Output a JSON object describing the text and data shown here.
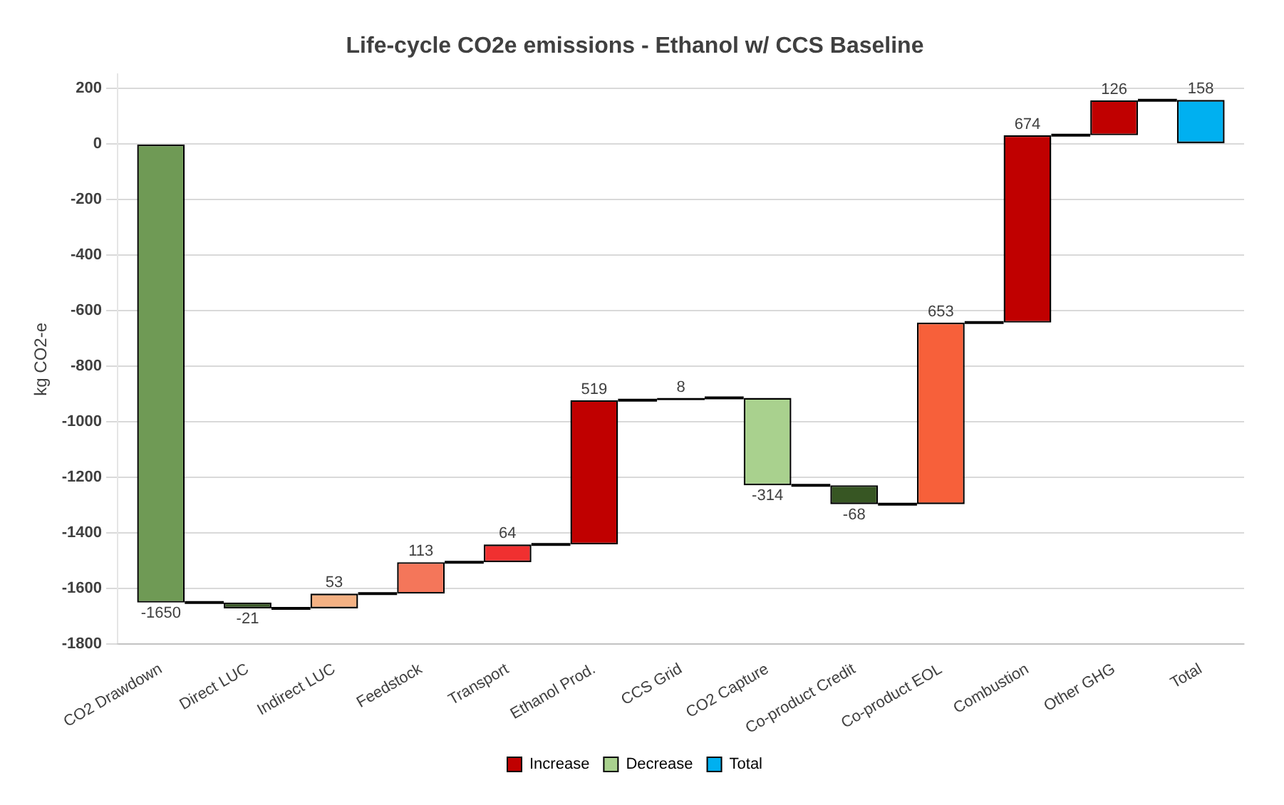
{
  "chart_data": {
    "type": "bar",
    "title": "Life-cycle CO2e emissions - Ethanol w/ CCS Baseline",
    "ylabel": "kg CO2-e",
    "categories": [
      "CO2 Drawdown",
      "Direct LUC",
      "Indirect LUC",
      "Feedstock",
      "Transport",
      "Ethanol Prod.",
      "CCS Grid",
      "CO2 Capture",
      "Co-product Credit",
      "Co-product EOL",
      "Combustion",
      "Other GHG",
      "Total"
    ],
    "series": [
      {
        "name": "Increase",
        "color": "#c00000",
        "values": [
          null,
          null,
          53,
          113,
          64,
          519,
          8,
          null,
          null,
          653,
          674,
          126,
          null
        ],
        "base": [
          null,
          null,
          -1671,
          -1618,
          -1505,
          -1441,
          -922,
          null,
          null,
          -1296,
          -643,
          31,
          null
        ],
        "colors": [
          null,
          null,
          "#f4b183",
          "#f4765a",
          "#f03030",
          "#c00000",
          "#000000",
          null,
          null,
          "#f7603a",
          "#c00000",
          "#c00000",
          null
        ]
      },
      {
        "name": "Decrease",
        "color": "#a9d18e",
        "values": [
          -1650,
          -21,
          null,
          null,
          null,
          null,
          null,
          -314,
          -68,
          null,
          null,
          null,
          null
        ],
        "base": [
          0,
          -1650,
          null,
          null,
          null,
          null,
          null,
          -914,
          -1228,
          null,
          null,
          null,
          null
        ],
        "colors": [
          "#6f9a55",
          "#375623",
          null,
          null,
          null,
          null,
          null,
          "#a9d18e",
          "#375623",
          null,
          null,
          null,
          null
        ]
      },
      {
        "name": "Total",
        "color": "#00b0f0",
        "values": [
          null,
          null,
          null,
          null,
          null,
          null,
          null,
          null,
          null,
          null,
          null,
          null,
          158
        ],
        "base": [
          null,
          null,
          null,
          null,
          null,
          null,
          null,
          null,
          null,
          null,
          null,
          null,
          0
        ]
      }
    ],
    "ylim": [
      -1800,
      250
    ],
    "yticks": [
      -1800,
      -1600,
      -1400,
      -1200,
      -1000,
      -800,
      -600,
      -400,
      -200,
      0,
      200
    ],
    "grid": "y",
    "legend": "bottom",
    "data_labels": true
  }
}
